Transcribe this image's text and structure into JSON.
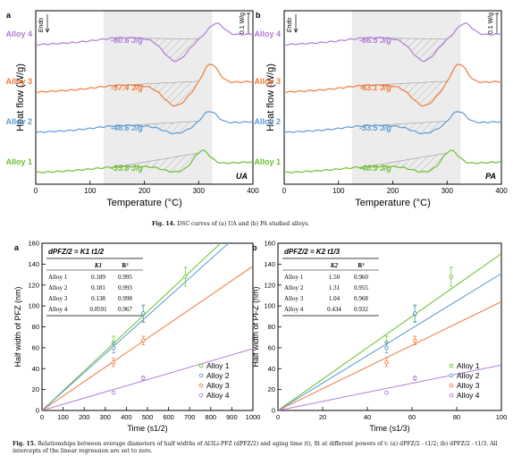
{
  "fig14": {
    "caption_label": "Fig. 14.",
    "caption_text": "DSC curves of (a) UA and (b) PA studied alloys.",
    "y_label": "Heat flow (W/g)",
    "x_label": "Temperature (°C)",
    "endo_label": "Endo",
    "scale_label": "0.1 W/g",
    "x_ticks": [
      "0",
      "100",
      "200",
      "300",
      "400"
    ],
    "panels": [
      {
        "letter": "a",
        "condition": "UA",
        "alloys": [
          {
            "name": "Alloy 4",
            "enthalpy": "-60.6 J/g",
            "color": "#b07cd8"
          },
          {
            "name": "Alloy 3",
            "enthalpy": "-57.4 J/g",
            "color": "#f07a38"
          },
          {
            "name": "Alloy 2",
            "enthalpy": "-48.6 J/g",
            "color": "#5a9bd4"
          },
          {
            "name": "Alloy 1",
            "enthalpy": "-35.8 J/g",
            "color": "#6cbf2f"
          }
        ]
      },
      {
        "letter": "b",
        "condition": "PA",
        "alloys": [
          {
            "name": "Alloy 4",
            "enthalpy": "-66.5 J/g",
            "color": "#b07cd8"
          },
          {
            "name": "Alloy 3",
            "enthalpy": "-63.1 J/g",
            "color": "#f07a38"
          },
          {
            "name": "Alloy 2",
            "enthalpy": "-53.5 J/g",
            "color": "#5a9bd4"
          },
          {
            "name": "Alloy 1",
            "enthalpy": "-40.9 J/g",
            "color": "#6cbf2f"
          }
        ]
      }
    ]
  },
  "fig15": {
    "caption_label": "Fig. 15.",
    "caption_text": "Relationships between average diameters of half widths of Al3Li-PFZ (dPFZ/2) and aging time (t), fit at different powers of t: (a) dPFZ/2 - t1/2; (b) dPFZ/2 - t1/3. All intercepts of the linear regression are set to zero.",
    "y_label": "Half width of PFZ (nm)",
    "table_cols": [
      "R²"
    ],
    "legend": [
      "Alloy 1",
      "Alloy 2",
      "Alloy 3",
      "Alloy 4"
    ],
    "colors": [
      "#6cbf2f",
      "#5a9bd4",
      "#f07a38",
      "#b07cd8"
    ]
  },
  "chart_data": [
    {
      "type": "scatter",
      "panel": "a",
      "title": "dPFZ/2 = K1 t1/2",
      "xlabel": "Time (s1/2)",
      "ylabel": "Half width of PFZ (nm)",
      "xlim": [
        0,
        1000
      ],
      "ylim": [
        0,
        160
      ],
      "x_ticks": [
        0,
        100,
        200,
        300,
        400,
        500,
        600,
        700,
        800,
        900,
        1000
      ],
      "y_ticks": [
        0,
        20,
        40,
        60,
        80,
        100,
        120,
        140,
        160
      ],
      "table_k_label": "K1",
      "table": [
        {
          "alloy": "Alloy 1",
          "K": "0.189",
          "R2": "0.995"
        },
        {
          "alloy": "Alloy 2",
          "K": "0.181",
          "R2": "0.993"
        },
        {
          "alloy": "Alloy 3",
          "K": "0.138",
          "R2": "0.998"
        },
        {
          "alloy": "Alloy 4",
          "K": "0.0591",
          "R2": "0.967"
        }
      ],
      "series": [
        {
          "name": "Alloy 1",
          "slope": 0.189,
          "x": [
            339,
            480,
            680
          ],
          "y": [
            65,
            92,
            128
          ],
          "err": [
            6,
            8,
            9
          ]
        },
        {
          "name": "Alloy 2",
          "slope": 0.181,
          "x": [
            339,
            480
          ],
          "y": [
            60,
            93
          ],
          "err": [
            5,
            8
          ]
        },
        {
          "name": "Alloy 3",
          "slope": 0.138,
          "x": [
            339,
            480
          ],
          "y": [
            46,
            67
          ],
          "err": [
            4,
            4
          ]
        },
        {
          "name": "Alloy 4",
          "slope": 0.0591,
          "x": [
            339,
            480
          ],
          "y": [
            17,
            31
          ],
          "err": [
            1,
            2
          ]
        }
      ]
    },
    {
      "type": "scatter",
      "panel": "b",
      "title": "dPFZ/2 = K2 t1/3",
      "xlabel": "Time (s1/3)",
      "ylabel": "Half width of PFZ (nm)",
      "xlim": [
        0,
        100
      ],
      "ylim": [
        0,
        160
      ],
      "x_ticks": [
        0,
        20,
        40,
        60,
        80,
        100
      ],
      "y_ticks": [
        0,
        20,
        40,
        60,
        80,
        100,
        120,
        140,
        160
      ],
      "table_k_label": "K2",
      "table": [
        {
          "alloy": "Alloy 1",
          "K": "1.50",
          "R2": "0.960"
        },
        {
          "alloy": "Alloy 2",
          "K": "1.31",
          "R2": "0.955"
        },
        {
          "alloy": "Alloy 3",
          "K": "1.04",
          "R2": "0.968"
        },
        {
          "alloy": "Alloy 4",
          "K": "0.434",
          "R2": "0.932"
        }
      ],
      "series": [
        {
          "name": "Alloy 1",
          "slope": 1.5,
          "x": [
            48.6,
            61.3,
            77.5
          ],
          "y": [
            65,
            92,
            128
          ],
          "err": [
            6,
            8,
            9
          ]
        },
        {
          "name": "Alloy 2",
          "slope": 1.31,
          "x": [
            48.6,
            61.3
          ],
          "y": [
            60,
            93
          ],
          "err": [
            5,
            8
          ]
        },
        {
          "name": "Alloy 3",
          "slope": 1.04,
          "x": [
            48.6,
            61.3
          ],
          "y": [
            46,
            67
          ],
          "err": [
            4,
            4
          ]
        },
        {
          "name": "Alloy 4",
          "slope": 0.434,
          "x": [
            48.6,
            61.3
          ],
          "y": [
            17,
            31
          ],
          "err": [
            1,
            2
          ]
        }
      ]
    }
  ]
}
